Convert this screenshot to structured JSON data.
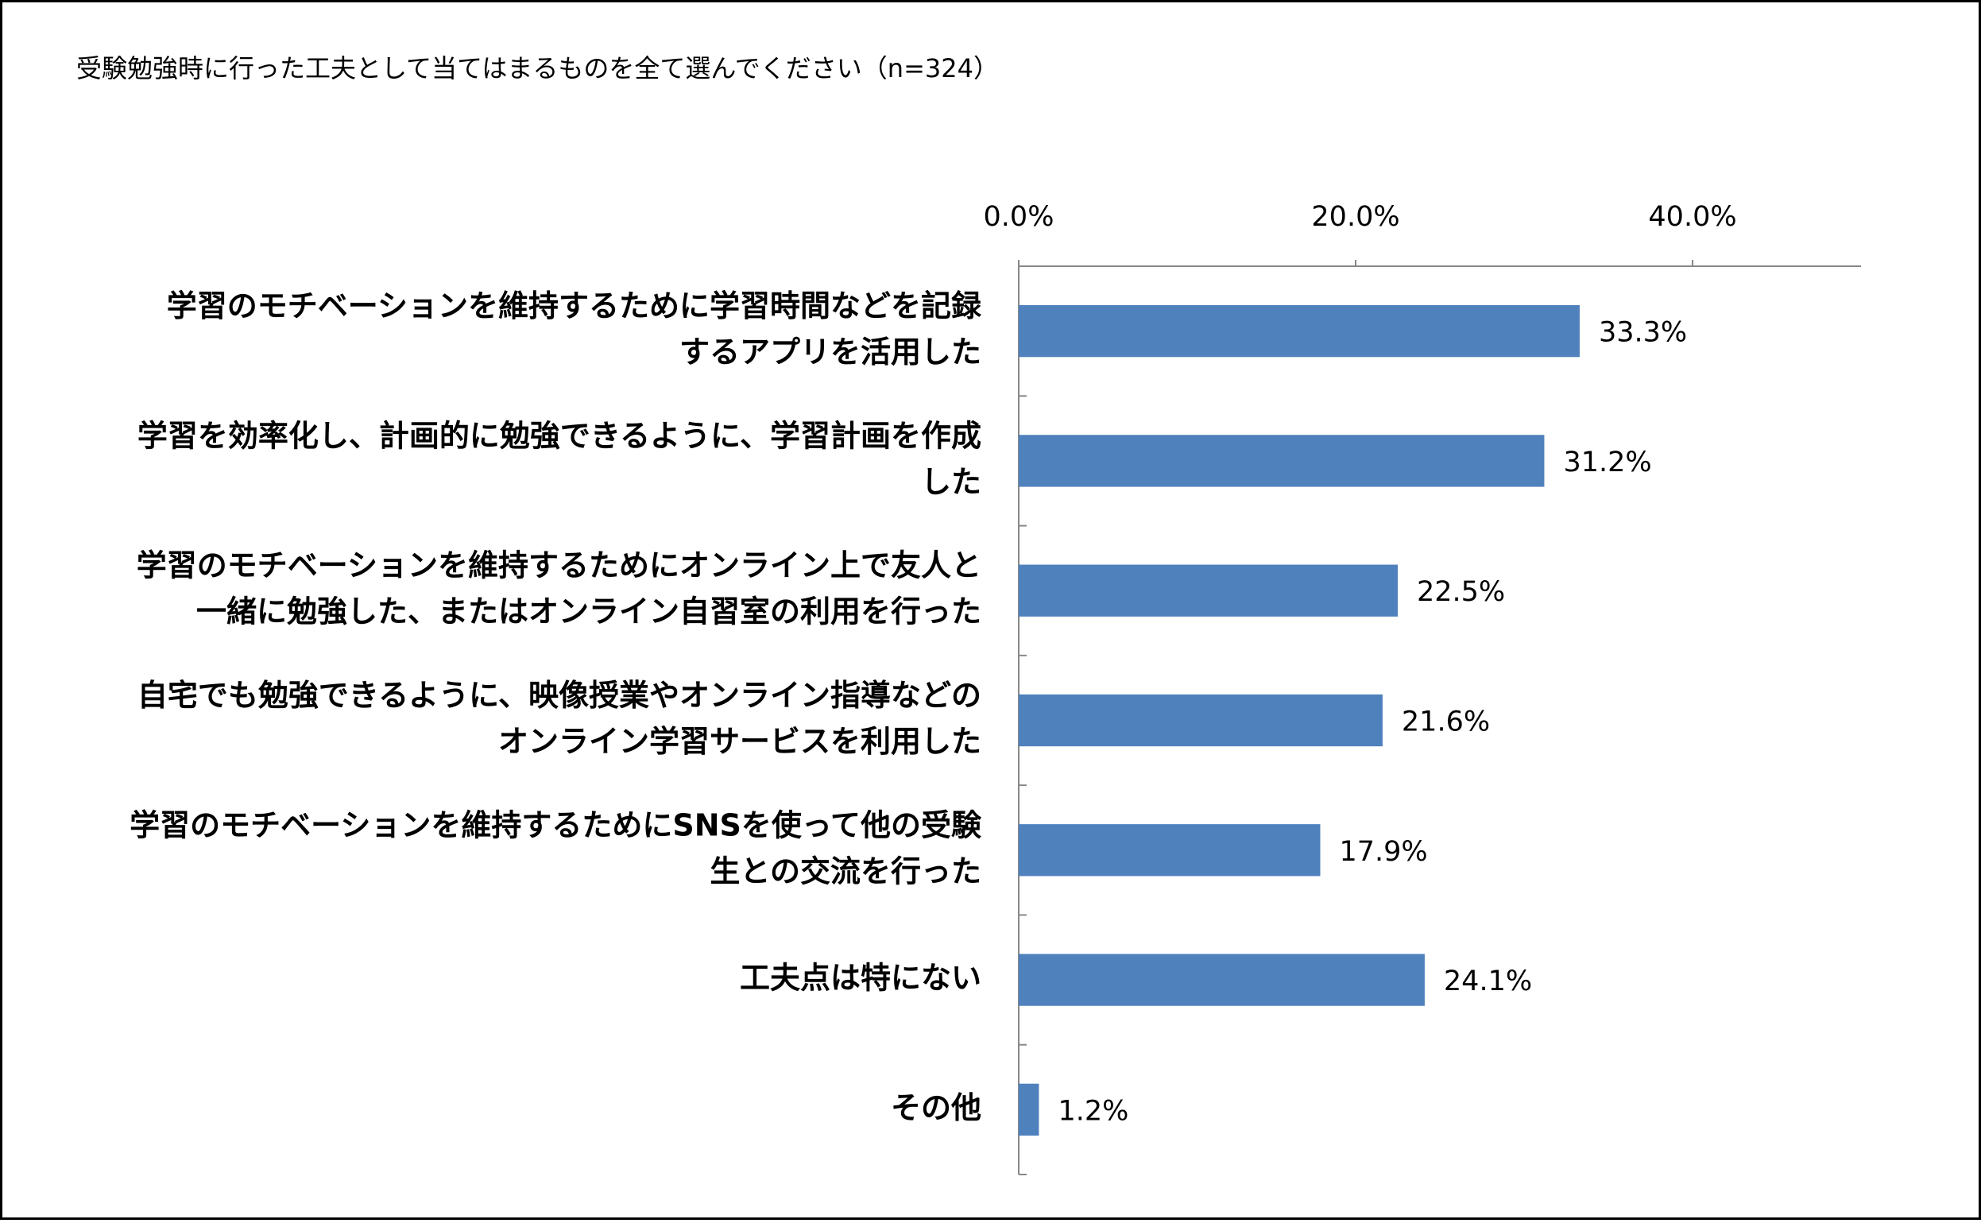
{
  "chart_data": {
    "type": "bar",
    "orientation": "horizontal",
    "title": "受験勉強時に行った工夫として当てはまるものを全て選んでください（n=324）",
    "categories": [
      [
        "学習のモチベーションを維持するために学習時間などを記録",
        "するアプリを活用した"
      ],
      [
        "学習を効率化し、計画的に勉強できるように、学習計画を作成",
        "した"
      ],
      [
        "学習のモチベーションを維持するためにオンライン上で友人と",
        "一緒に勉強した、またはオンライン自習室の利用を行った"
      ],
      [
        "自宅でも勉強できるように、映像授業やオンライン指導などの",
        "オンライン学習サービスを利用した"
      ],
      [
        "学習のモチベーションを維持するためにSNSを使って他の受験",
        "生との交流を行った"
      ],
      [
        "工夫点は特にない"
      ],
      [
        "その他"
      ]
    ],
    "values": [
      33.3,
      31.2,
      22.5,
      21.6,
      17.9,
      24.1,
      1.2
    ],
    "value_labels": [
      "33.3%",
      "31.2%",
      "22.5%",
      "21.6%",
      "17.9%",
      "24.1%",
      "1.2%"
    ],
    "color": "#4f81bd",
    "xlim": [
      0,
      50
    ],
    "xticks": [
      {
        "value": 0,
        "label": "0.0%"
      },
      {
        "value": 20,
        "label": "20.0%"
      },
      {
        "value": 40,
        "label": "40.0%"
      }
    ],
    "grid": false
  }
}
